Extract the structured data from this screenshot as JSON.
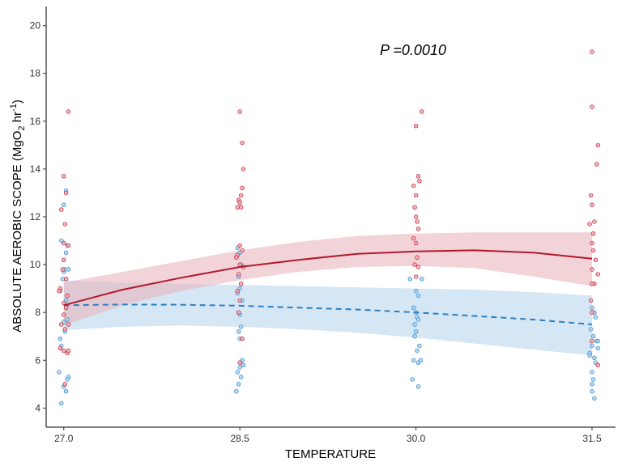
{
  "chart_data": {
    "type": "scatter",
    "title": "",
    "annotation": "P =0.0010",
    "xlabel": "TEMPERATURE",
    "ylabel_main": "ABSOLUTE AEROBIC SCOPE (MgO",
    "ylabel_sub": "2",
    "ylabel_mid": " hr",
    "ylabel_sup": "-1",
    "ylabel_end": ")",
    "xlim": [
      26.85,
      31.7
    ],
    "ylim": [
      3.2,
      20.8
    ],
    "x_ticks": [
      27.0,
      28.5,
      30.0,
      31.5
    ],
    "x_tick_labels": [
      "27.0",
      "28.5",
      "30.0",
      "31.5"
    ],
    "y_ticks": [
      4,
      6,
      8,
      10,
      12,
      14,
      16,
      18,
      20
    ],
    "y_tick_labels": [
      "4",
      "6",
      "8",
      "10",
      "12",
      "14",
      "16",
      "18",
      "20"
    ],
    "grid": false,
    "legend": "none",
    "series": [
      {
        "color": "#b2182b",
        "point_fill": "#f4a6ae",
        "line_style": "solid",
        "fit": {
          "x": [
            27.0,
            27.5,
            28.0,
            28.5,
            29.0,
            29.5,
            30.0,
            30.5,
            31.0,
            31.5
          ],
          "y": [
            8.3,
            8.95,
            9.45,
            9.9,
            10.2,
            10.45,
            10.55,
            10.6,
            10.5,
            10.25
          ],
          "lower": [
            7.45,
            8.3,
            8.9,
            9.35,
            9.7,
            9.9,
            9.95,
            9.85,
            9.5,
            9.1
          ],
          "upper": [
            9.25,
            9.7,
            10.15,
            10.6,
            10.95,
            11.2,
            11.3,
            11.35,
            11.35,
            11.35
          ]
        },
        "points": [
          [
            27.0,
            13.7
          ],
          [
            27.02,
            13.0
          ],
          [
            26.98,
            12.3
          ],
          [
            27.01,
            11.7
          ],
          [
            27.0,
            10.9
          ],
          [
            27.04,
            10.8
          ],
          [
            27.0,
            10.2
          ],
          [
            26.99,
            9.8
          ],
          [
            27.02,
            9.4
          ],
          [
            26.97,
            9.0
          ],
          [
            27.03,
            8.7
          ],
          [
            27.0,
            8.4
          ],
          [
            27.02,
            8.2
          ],
          [
            27.0,
            7.9
          ],
          [
            26.98,
            7.5
          ],
          [
            27.01,
            7.3
          ],
          [
            27.0,
            6.4
          ],
          [
            26.97,
            6.5
          ],
          [
            27.03,
            6.3
          ],
          [
            27.01,
            5.0
          ],
          [
            27.04,
            16.4
          ],
          [
            27.04,
            7.5
          ],
          [
            26.96,
            8.9
          ],
          [
            27.04,
            6.4
          ],
          [
            28.5,
            16.4
          ],
          [
            28.52,
            15.1
          ],
          [
            28.53,
            14.0
          ],
          [
            28.52,
            13.2
          ],
          [
            28.49,
            12.7
          ],
          [
            28.5,
            12.6
          ],
          [
            28.48,
            12.4
          ],
          [
            28.51,
            12.4
          ],
          [
            28.5,
            10.8
          ],
          [
            28.52,
            10.6
          ],
          [
            28.48,
            10.4
          ],
          [
            28.47,
            10.3
          ],
          [
            28.5,
            10.0
          ],
          [
            28.53,
            9.9
          ],
          [
            28.49,
            9.6
          ],
          [
            28.51,
            9.2
          ],
          [
            28.48,
            8.9
          ],
          [
            28.5,
            8.5
          ],
          [
            28.49,
            8.0
          ],
          [
            28.52,
            6.9
          ],
          [
            28.5,
            5.9
          ],
          [
            28.51,
            12.9
          ],
          [
            30.0,
            15.8
          ],
          [
            30.05,
            16.4
          ],
          [
            30.02,
            13.7
          ],
          [
            30.03,
            13.5
          ],
          [
            29.98,
            13.3
          ],
          [
            30.0,
            12.9
          ],
          [
            29.99,
            12.4
          ],
          [
            30.0,
            12.0
          ],
          [
            30.01,
            11.8
          ],
          [
            30.02,
            11.5
          ],
          [
            29.98,
            11.1
          ],
          [
            30.0,
            10.9
          ],
          [
            30.01,
            10.3
          ],
          [
            29.99,
            10.0
          ],
          [
            30.02,
            9.9
          ],
          [
            30.0,
            9.5
          ],
          [
            31.5,
            18.9
          ],
          [
            31.5,
            16.6
          ],
          [
            31.55,
            15.0
          ],
          [
            31.54,
            14.2
          ],
          [
            31.49,
            12.9
          ],
          [
            31.5,
            12.5
          ],
          [
            31.52,
            11.8
          ],
          [
            31.48,
            11.7
          ],
          [
            31.5,
            10.9
          ],
          [
            31.51,
            10.6
          ],
          [
            31.53,
            10.2
          ],
          [
            31.5,
            9.8
          ],
          [
            31.55,
            9.6
          ],
          [
            31.52,
            9.2
          ],
          [
            31.49,
            8.5
          ],
          [
            31.5,
            8.0
          ],
          [
            31.5,
            6.8
          ],
          [
            31.55,
            5.8
          ],
          [
            31.5,
            9.2
          ],
          [
            31.51,
            11.3
          ]
        ]
      },
      {
        "color": "#2f7fbf",
        "point_fill": "#a6d4f4",
        "line_style": "dashed",
        "fit": {
          "x": [
            27.0,
            27.5,
            28.0,
            28.5,
            29.0,
            29.5,
            30.0,
            30.5,
            31.0,
            31.5
          ],
          "y": [
            8.3,
            8.33,
            8.32,
            8.28,
            8.2,
            8.12,
            8.0,
            7.85,
            7.7,
            7.5
          ],
          "lower": [
            7.25,
            7.4,
            7.45,
            7.4,
            7.3,
            7.15,
            6.95,
            6.7,
            6.45,
            6.2
          ],
          "upper": [
            9.35,
            9.25,
            9.2,
            9.15,
            9.1,
            9.05,
            9.0,
            8.95,
            8.85,
            8.7
          ]
        },
        "points": [
          [
            26.98,
            11.0
          ],
          [
            27.0,
            12.5
          ],
          [
            27.02,
            10.5
          ],
          [
            27.03,
            10.8
          ],
          [
            27.0,
            9.7
          ],
          [
            26.99,
            9.4
          ],
          [
            27.01,
            9.8
          ],
          [
            27.02,
            8.5
          ],
          [
            26.97,
            8.9
          ],
          [
            27.03,
            7.7
          ],
          [
            27.01,
            7.2
          ],
          [
            27.0,
            7.6
          ],
          [
            26.98,
            6.6
          ],
          [
            26.97,
            6.9
          ],
          [
            27.04,
            5.3
          ],
          [
            27.03,
            5.2
          ],
          [
            26.96,
            5.5
          ],
          [
            27.0,
            4.9
          ],
          [
            27.02,
            4.7
          ],
          [
            26.98,
            4.2
          ],
          [
            27.02,
            13.1
          ],
          [
            27.04,
            9.8
          ],
          [
            28.5,
            10.5
          ],
          [
            28.51,
            10.0
          ],
          [
            28.49,
            9.5
          ],
          [
            28.5,
            9.0
          ],
          [
            28.52,
            8.5
          ],
          [
            28.48,
            8.8
          ],
          [
            28.5,
            7.9
          ],
          [
            28.51,
            7.4
          ],
          [
            28.49,
            7.2
          ],
          [
            28.52,
            6.0
          ],
          [
            28.5,
            5.7
          ],
          [
            28.48,
            5.5
          ],
          [
            28.51,
            5.3
          ],
          [
            28.49,
            5.0
          ],
          [
            28.47,
            4.7
          ],
          [
            28.53,
            5.8
          ],
          [
            28.48,
            10.7
          ],
          [
            28.5,
            6.9
          ],
          [
            29.95,
            9.4
          ],
          [
            30.05,
            9.4
          ],
          [
            30.0,
            8.9
          ],
          [
            30.02,
            8.7
          ],
          [
            29.98,
            8.2
          ],
          [
            30.0,
            8.0
          ],
          [
            30.01,
            7.8
          ],
          [
            30.02,
            7.7
          ],
          [
            29.99,
            7.5
          ],
          [
            30.0,
            7.2
          ],
          [
            30.03,
            6.6
          ],
          [
            30.01,
            6.4
          ],
          [
            29.98,
            6.0
          ],
          [
            30.02,
            5.9
          ],
          [
            29.97,
            5.2
          ],
          [
            30.02,
            4.9
          ],
          [
            30.04,
            6.0
          ],
          [
            29.99,
            7.0
          ],
          [
            31.5,
            8.2
          ],
          [
            31.52,
            8.0
          ],
          [
            31.53,
            7.8
          ],
          [
            31.49,
            7.3
          ],
          [
            31.51,
            7.0
          ],
          [
            31.54,
            6.8
          ],
          [
            31.5,
            6.6
          ],
          [
            31.48,
            6.3
          ],
          [
            31.52,
            6.1
          ],
          [
            31.55,
            6.5
          ],
          [
            31.53,
            5.9
          ],
          [
            31.5,
            5.5
          ],
          [
            31.51,
            5.2
          ],
          [
            31.5,
            4.7
          ],
          [
            31.52,
            4.4
          ],
          [
            31.55,
            6.8
          ],
          [
            31.48,
            6.2
          ],
          [
            31.5,
            5.0
          ]
        ]
      }
    ]
  }
}
